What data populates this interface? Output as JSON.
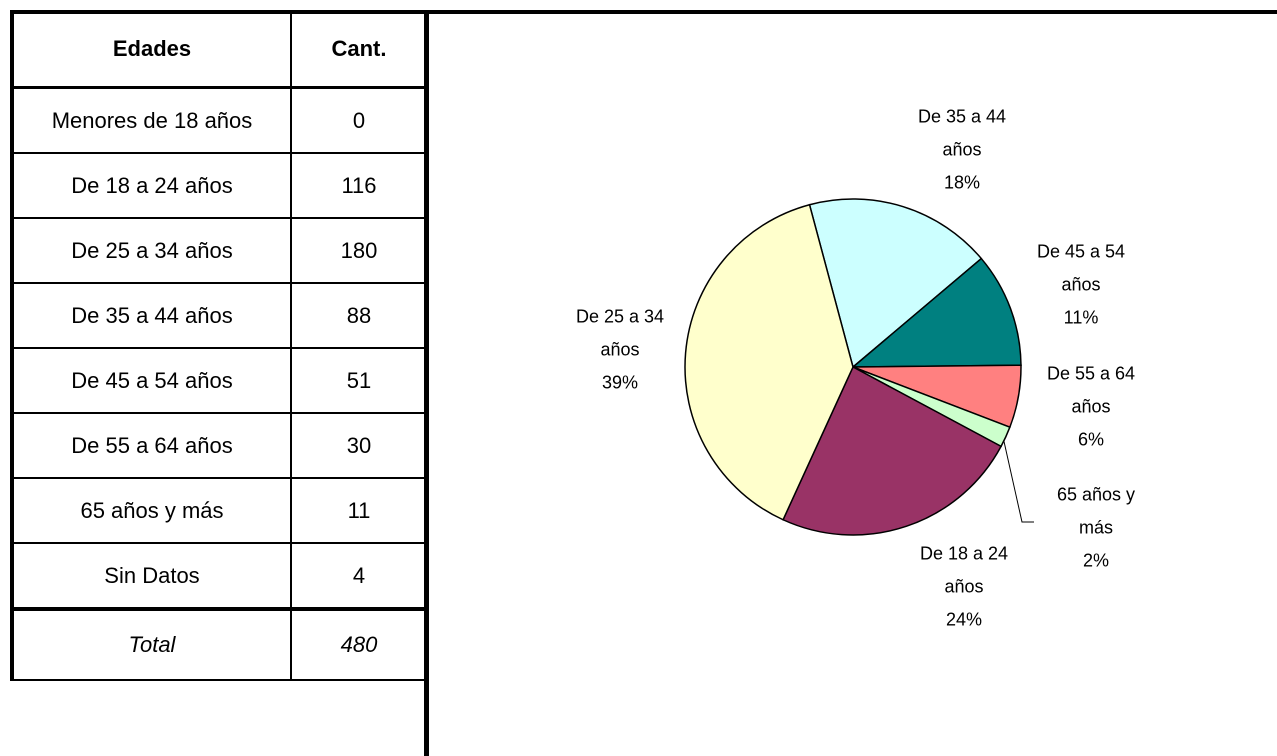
{
  "table": {
    "header": [
      "Edades",
      "Cant."
    ],
    "rows": [
      [
        "Menores de 18 años",
        0
      ],
      [
        "De 18 a 24 años",
        116
      ],
      [
        "De 25 a 34 años",
        180
      ],
      [
        "De 35 a 44 años",
        88
      ],
      [
        "De 45 a 54 años",
        51
      ],
      [
        "De 55 a 64 años",
        30
      ],
      [
        "65 años y más",
        11
      ],
      [
        "Sin Datos",
        4
      ]
    ],
    "total": [
      "Total",
      480
    ]
  },
  "chart_data": {
    "type": "pie",
    "categories": [
      "De 35 a 44 años",
      "De 45 a 54 años",
      "De 55 a 64 años",
      "65 años y más",
      "De 18 a 24 años",
      "De 25 a 34 años"
    ],
    "values": [
      18,
      11,
      6,
      2,
      24,
      39
    ],
    "value_labels": [
      "18%",
      "11%",
      "6%",
      "2%",
      "24%",
      "39%"
    ],
    "colors": [
      "#ccffff",
      "#008080",
      "#ff8080",
      "#ccffcc",
      "#993366",
      "#ffffcc"
    ]
  }
}
